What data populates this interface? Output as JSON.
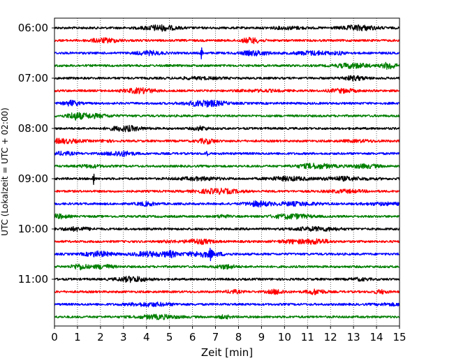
{
  "chart_data": {
    "type": "line",
    "subtype": "helicorder-seismogram",
    "xlabel": "Zeit  [min]",
    "ylabel": "UTC (Lokalzeit = UTC + 02:00)",
    "xlim": [
      0,
      15
    ],
    "x_ticks": [
      "0",
      "1",
      "2",
      "3",
      "4",
      "5",
      "6",
      "7",
      "8",
      "9",
      "10",
      "11",
      "12",
      "13",
      "14",
      "15"
    ],
    "y_tick_labels": [
      "06:00",
      "07:00",
      "08:00",
      "09:00",
      "10:00",
      "11:00"
    ],
    "vertical_grid": "dotted",
    "trace_interval_minutes": 15,
    "trace_count": 24,
    "trace_colors": [
      "#000000",
      "#ff0000",
      "#0000ff",
      "#007f00"
    ],
    "notable_events": [
      {
        "trace": 2,
        "minute": 6.4,
        "label_time": "06:30"
      },
      {
        "trace": 10,
        "minute": 6.6,
        "label_time": "08:30"
      },
      {
        "trace": 12,
        "minute": 1.7,
        "label_time": "09:00"
      },
      {
        "trace": 18,
        "minute": 6.8,
        "label_time": "10:30"
      }
    ]
  }
}
